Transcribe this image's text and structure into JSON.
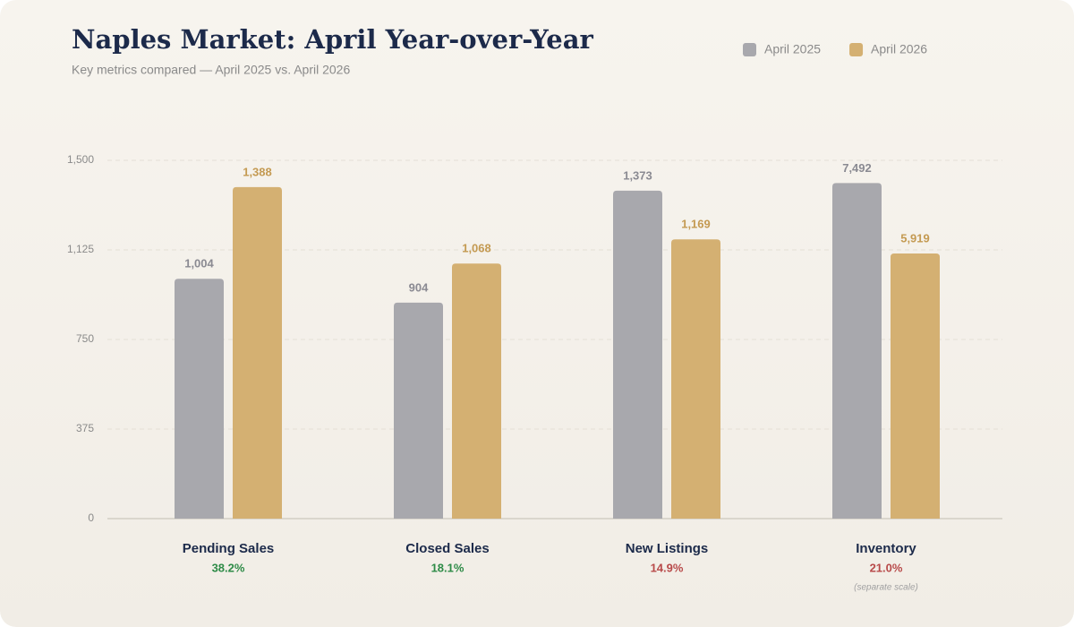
{
  "chart_data": {
    "type": "grouped-bar",
    "title": "Naples Market: April Year-over-Year",
    "subtitle": "Key metrics compared — April 2025 vs. April 2026",
    "categories": [
      "Pending Sales",
      "Closed Sales",
      "New Listings",
      "Inventory"
    ],
    "series": [
      {
        "name": "April 2025",
        "color": "#a8a8ad",
        "label_color": "#8a8a92",
        "values": [
          1004,
          904,
          1373,
          7492
        ],
        "value_labels": [
          "1,004",
          "904",
          "1,373",
          "7,492"
        ]
      },
      {
        "name": "April 2026",
        "color": "#d4b072",
        "label_color": "#c49a52",
        "values": [
          1388,
          1068,
          1169,
          5919
        ],
        "value_labels": [
          "1,388",
          "1,068",
          "1,169",
          "5,919"
        ]
      }
    ],
    "changes": [
      {
        "label": "38.2%",
        "color": "#2e8b47"
      },
      {
        "label": "18.1%",
        "color": "#2e8b47"
      },
      {
        "label": "14.9%",
        "color": "#b84a4a"
      },
      {
        "label": "21.0%",
        "color": "#b84a4a"
      }
    ],
    "separate_scale": {
      "category": "Inventory",
      "ylim": [
        0,
        8000
      ],
      "note": "(separate scale)"
    },
    "ylim": [
      0,
      1500
    ],
    "yticks": [
      0,
      375,
      750,
      {
        "value": 1125,
        "label": "1,125"
      },
      {
        "value": 1500,
        "label": "1,500"
      }
    ],
    "grid": true,
    "legend": "top-right"
  }
}
